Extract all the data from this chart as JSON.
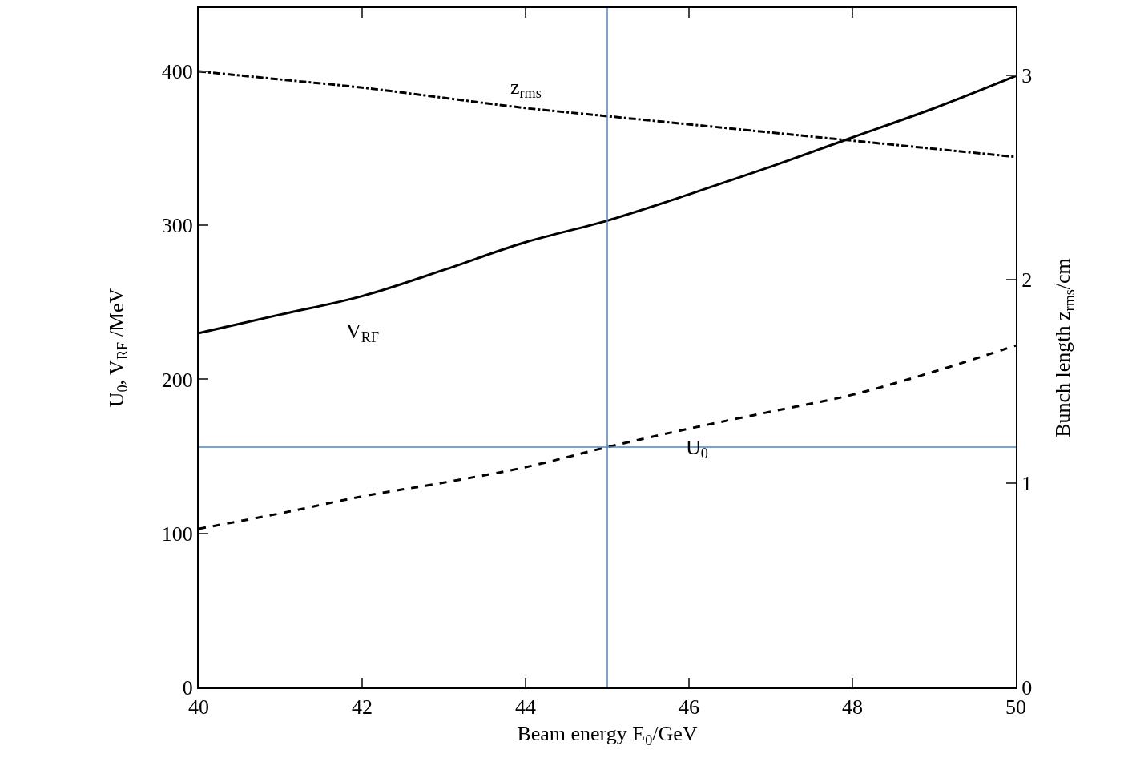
{
  "chart_data": {
    "type": "line",
    "xlabel": "Beam energy E$_{0}$/GeV",
    "ylabel": "U$_{0}$, V$_{RF}$ /MeV",
    "y2label": "Bunch length z$_{rms}$/cm",
    "x": [
      40,
      41,
      42,
      43,
      44,
      45,
      46,
      47,
      48,
      49,
      50
    ],
    "series": [
      {
        "name": "V$_{RF}$",
        "color": "#000000",
        "line_style": "solid",
        "values": [
          230,
          242,
          254,
          271,
          289,
          303,
          320,
          338,
          357,
          376,
          397
        ]
      },
      {
        "name": "U$_{0}$",
        "color": "#000000",
        "line_style": "dashed",
        "values": [
          103,
          113,
          124,
          133,
          143,
          156,
          168,
          179,
          190,
          205,
          222
        ]
      },
      {
        "name": "z$_{rms}$",
        "color": "#000000",
        "line_style": "dashdot",
        "axis": "y2",
        "values": [
          3.02,
          2.98,
          2.94,
          2.89,
          2.84,
          2.8,
          2.76,
          2.72,
          2.68,
          2.64,
          2.6
        ]
      }
    ],
    "ref_lines": [
      {
        "axis": "x",
        "value": 45,
        "color": "#4a86c8"
      },
      {
        "axis": "y",
        "value": 156,
        "color": "#4a86c8"
      }
    ],
    "xlim": [
      40,
      50
    ],
    "xticks": [
      40,
      42,
      44,
      46,
      48,
      50
    ],
    "ylim": [
      0,
      441
    ],
    "yticks": [
      0,
      100,
      200,
      300,
      400
    ],
    "y2lim": [
      0,
      3.33
    ],
    "y2ticks": [
      0,
      1,
      2,
      3
    ],
    "grid": false,
    "legend": false,
    "marker": "none"
  }
}
